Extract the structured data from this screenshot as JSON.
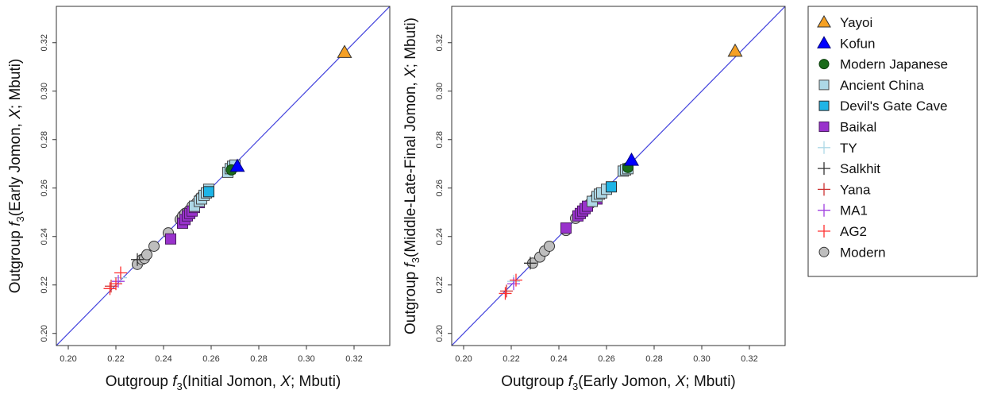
{
  "chart_data": [
    {
      "type": "scatter",
      "xlabel": {
        "prefix": "Outgroup ",
        "stat": "f",
        "sub": "3",
        "args": "(Initial Jomon, ",
        "x": "X",
        "rest": "; Mbuti)"
      },
      "ylabel": {
        "prefix": "Outgroup ",
        "stat": "f",
        "sub": "3",
        "args": "(Early Jomon, ",
        "x": "X",
        "rest": "; Mbuti)"
      },
      "xlim": [
        0.195,
        0.335
      ],
      "ylim": [
        0.195,
        0.335
      ],
      "xticks": [
        "0.20",
        "0.22",
        "0.24",
        "0.26",
        "0.28",
        "0.30",
        "0.32"
      ],
      "yticks": [
        "0.20",
        "0.22",
        "0.24",
        "0.26",
        "0.28",
        "0.30",
        "0.32"
      ],
      "reference_line": "y = x",
      "series": [
        {
          "name": "Modern",
          "points": [
            [
              0.229,
              0.2285
            ],
            [
              0.231,
              0.2305
            ],
            [
              0.232,
              0.231
            ],
            [
              0.233,
              0.2325
            ],
            [
              0.236,
              0.236
            ],
            [
              0.242,
              0.2415
            ],
            [
              0.247,
              0.247
            ],
            [
              0.248,
              0.2485
            ],
            [
              0.249,
              0.2495
            ],
            [
              0.25,
              0.25
            ],
            [
              0.251,
              0.251
            ],
            [
              0.252,
              0.2525
            ],
            [
              0.253,
              0.253
            ],
            [
              0.254,
              0.254
            ],
            [
              0.255,
              0.2555
            ],
            [
              0.256,
              0.2565
            ],
            [
              0.258,
              0.2585
            ]
          ]
        },
        {
          "name": "Baikal",
          "points": [
            [
              0.243,
              0.239
            ],
            [
              0.248,
              0.2455
            ],
            [
              0.249,
              0.247
            ],
            [
              0.25,
              0.2485
            ],
            [
              0.251,
              0.2495
            ],
            [
              0.252,
              0.2505
            ],
            [
              0.253,
              0.252
            ],
            [
              0.255,
              0.254
            ],
            [
              0.256,
              0.2555
            ]
          ]
        },
        {
          "name": "Ancient China",
          "points": [
            [
              0.253,
              0.2525
            ],
            [
              0.255,
              0.2545
            ],
            [
              0.256,
              0.2555
            ],
            [
              0.257,
              0.257
            ],
            [
              0.258,
              0.258
            ],
            [
              0.259,
              0.2595
            ],
            [
              0.267,
              0.2665
            ],
            [
              0.268,
              0.268
            ],
            [
              0.269,
              0.269
            ],
            [
              0.27,
              0.2695
            ]
          ]
        },
        {
          "name": "Devil's Gate Cave",
          "points": [
            [
              0.259,
              0.2585
            ]
          ]
        },
        {
          "name": "Modern Japanese",
          "points": [
            [
              0.2685,
              0.2675
            ]
          ]
        },
        {
          "name": "Kofun",
          "points": [
            [
              0.271,
              0.269
            ]
          ]
        },
        {
          "name": "Yayoi",
          "points": [
            [
              0.316,
              0.316
            ]
          ]
        },
        {
          "name": "TY",
          "points": [
            [
              0.222,
              0.223
            ]
          ]
        },
        {
          "name": "Salkhit",
          "points": [
            [
              0.229,
              0.2305
            ]
          ]
        },
        {
          "name": "Yana",
          "points": [
            [
              0.218,
              0.2195
            ]
          ]
        },
        {
          "name": "MA1",
          "points": [
            [
              0.221,
              0.2215
            ]
          ]
        },
        {
          "name": "AG2",
          "points": [
            [
              0.2175,
              0.2185
            ],
            [
              0.22,
              0.2205
            ],
            [
              0.222,
              0.225
            ]
          ]
        }
      ]
    },
    {
      "type": "scatter",
      "xlabel": {
        "prefix": "Outgroup ",
        "stat": "f",
        "sub": "3",
        "args": "(Early Jomon, ",
        "x": "X",
        "rest": "; Mbuti)"
      },
      "ylabel": {
        "prefix": "Outgroup ",
        "stat": "f",
        "sub": "3",
        "args": "(Middle-Late-Final Jomon, ",
        "x": "X",
        "rest": "; Mbuti)"
      },
      "xlim": [
        0.195,
        0.335
      ],
      "ylim": [
        0.195,
        0.335
      ],
      "xticks": [
        "0.20",
        "0.22",
        "0.24",
        "0.26",
        "0.28",
        "0.30",
        "0.32"
      ],
      "yticks": [
        "0.20",
        "0.22",
        "0.24",
        "0.26",
        "0.28",
        "0.30",
        "0.32"
      ],
      "reference_line": "y = x",
      "series": [
        {
          "name": "Modern",
          "points": [
            [
              0.229,
              0.229
            ],
            [
              0.232,
              0.2315
            ],
            [
              0.234,
              0.234
            ],
            [
              0.236,
              0.236
            ],
            [
              0.243,
              0.2425
            ],
            [
              0.247,
              0.2475
            ],
            [
              0.249,
              0.249
            ],
            [
              0.251,
              0.251
            ],
            [
              0.253,
              0.2535
            ],
            [
              0.255,
              0.2555
            ],
            [
              0.257,
              0.2575
            ]
          ]
        },
        {
          "name": "Baikal",
          "points": [
            [
              0.243,
              0.2435
            ],
            [
              0.248,
              0.2485
            ],
            [
              0.249,
              0.2495
            ],
            [
              0.25,
              0.2505
            ],
            [
              0.251,
              0.2515
            ],
            [
              0.252,
              0.2525
            ],
            [
              0.254,
              0.2545
            ],
            [
              0.256,
              0.2555
            ]
          ]
        },
        {
          "name": "Ancient China",
          "points": [
            [
              0.254,
              0.2545
            ],
            [
              0.256,
              0.2565
            ],
            [
              0.257,
              0.2575
            ],
            [
              0.258,
              0.258
            ],
            [
              0.26,
              0.2595
            ],
            [
              0.267,
              0.267
            ],
            [
              0.268,
              0.2675
            ],
            [
              0.269,
              0.268
            ]
          ]
        },
        {
          "name": "Devil's Gate Cave",
          "points": [
            [
              0.262,
              0.2605
            ]
          ]
        },
        {
          "name": "Modern Japanese",
          "points": [
            [
              0.269,
              0.2685
            ]
          ]
        },
        {
          "name": "Kofun",
          "points": [
            [
              0.2705,
              0.2715
            ]
          ]
        },
        {
          "name": "Yayoi",
          "points": [
            [
              0.314,
              0.3165
            ]
          ]
        },
        {
          "name": "TY",
          "points": [
            [
              0.221,
              0.2215
            ]
          ]
        },
        {
          "name": "Salkhit",
          "points": [
            [
              0.228,
              0.229
            ]
          ]
        },
        {
          "name": "Yana",
          "points": [
            [
              0.218,
              0.2175
            ]
          ]
        },
        {
          "name": "MA1",
          "points": [
            [
              0.221,
              0.2205
            ]
          ]
        },
        {
          "name": "AG2",
          "points": [
            [
              0.2175,
              0.2165
            ],
            [
              0.222,
              0.222
            ]
          ]
        }
      ]
    }
  ],
  "legend": {
    "placement": "right",
    "entries": [
      {
        "label": "Yayoi",
        "marker": "triangle",
        "fill": "#F5A023",
        "stroke": "#333333"
      },
      {
        "label": "Kofun",
        "marker": "triangle",
        "fill": "#0000FF",
        "stroke": "#000080"
      },
      {
        "label": "Modern Japanese",
        "marker": "circle",
        "fill": "#1A6B1A",
        "stroke": "#0B3D0B"
      },
      {
        "label": "Ancient China",
        "marker": "square",
        "fill": "#ADD8E6",
        "stroke": "#4A4A4A"
      },
      {
        "label": "Devil's Gate Cave",
        "marker": "square",
        "fill": "#1EB4E6",
        "stroke": "#2A2A2A"
      },
      {
        "label": "Baikal",
        "marker": "square",
        "fill": "#9932CC",
        "stroke": "#4B1C63"
      },
      {
        "label": "TY",
        "marker": "plus",
        "fill": "none",
        "stroke": "#ADD8E6"
      },
      {
        "label": "Salkhit",
        "marker": "plus",
        "fill": "none",
        "stroke": "#333333"
      },
      {
        "label": "Yana",
        "marker": "plus",
        "fill": "none",
        "stroke": "#CD3333"
      },
      {
        "label": "MA1",
        "marker": "plus",
        "fill": "none",
        "stroke": "#A040E0"
      },
      {
        "label": "AG2",
        "marker": "plus",
        "fill": "none",
        "stroke": "#FF3030"
      },
      {
        "label": "Modern",
        "marker": "circle",
        "fill": "#BEBEBE",
        "stroke": "#333333"
      }
    ]
  },
  "colors": {
    "reference_line": "#4444DD",
    "axis": "#333333"
  }
}
